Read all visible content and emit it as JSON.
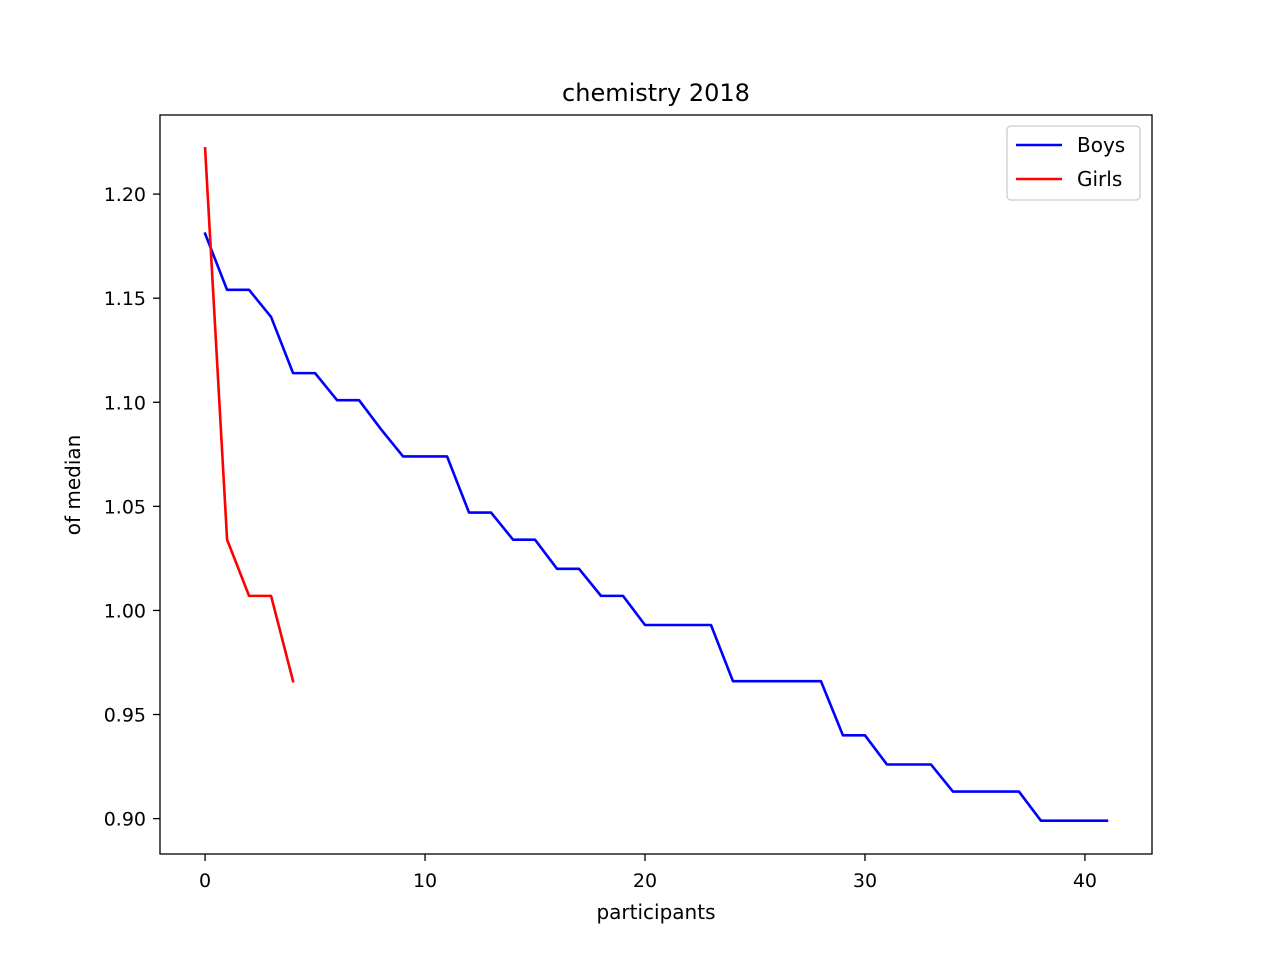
{
  "chart_data": {
    "type": "line",
    "title": "chemistry 2018",
    "xlabel": "participants",
    "ylabel": "of median",
    "xlim": [
      -2.05,
      43.05
    ],
    "ylim": [
      0.883,
      1.238
    ],
    "xticks": [
      0,
      10,
      20,
      30,
      40
    ],
    "yticks": [
      0.9,
      0.95,
      1.0,
      1.05,
      1.1,
      1.15,
      1.2
    ],
    "xtick_labels": [
      "0",
      "10",
      "20",
      "30",
      "40"
    ],
    "ytick_labels": [
      "0.90",
      "0.95",
      "1.00",
      "1.05",
      "1.10",
      "1.15",
      "1.20"
    ],
    "grid": false,
    "legend_position": "top-right",
    "series": [
      {
        "name": "Boys",
        "color": "#0000ff",
        "x": [
          0,
          1,
          2,
          3,
          4,
          5,
          6,
          7,
          8,
          9,
          10,
          11,
          12,
          13,
          14,
          15,
          16,
          17,
          18,
          19,
          20,
          21,
          22,
          23,
          24,
          25,
          26,
          27,
          28,
          29,
          30,
          31,
          32,
          33,
          34,
          35,
          36,
          37,
          38,
          39,
          40,
          41
        ],
        "values": [
          1.181,
          1.154,
          1.154,
          1.141,
          1.114,
          1.114,
          1.101,
          1.101,
          1.087,
          1.074,
          1.074,
          1.074,
          1.047,
          1.047,
          1.034,
          1.034,
          1.02,
          1.02,
          1.007,
          1.007,
          0.993,
          0.993,
          0.993,
          0.993,
          0.966,
          0.966,
          0.966,
          0.966,
          0.966,
          0.94,
          0.94,
          0.926,
          0.926,
          0.926,
          0.913,
          0.913,
          0.913,
          0.913,
          0.899,
          0.899,
          0.899,
          0.899
        ]
      },
      {
        "name": "Girls",
        "color": "#ff0000",
        "x": [
          0,
          1,
          2,
          3,
          4
        ],
        "values": [
          1.222,
          1.034,
          1.007,
          1.007,
          0.966
        ]
      }
    ]
  }
}
